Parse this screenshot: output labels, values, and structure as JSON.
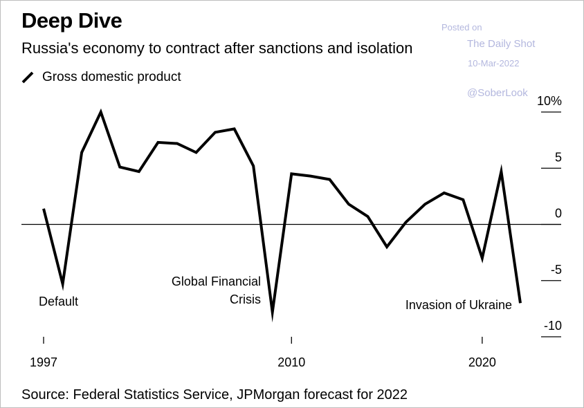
{
  "header": {
    "title": "Deep Dive",
    "subtitle": "Russia's economy to contract after sanctions and isolation"
  },
  "watermark": {
    "line1": "Posted on",
    "line2": "The Daily Shot",
    "line3": "10-Mar-2022",
    "line4": "@SoberLook"
  },
  "source": "Source: Federal Statistics Service, JPMorgan forecast for 2022",
  "colors": {
    "line": "#000000",
    "axis": "#000000",
    "watermark": "#b3b7de"
  },
  "chart_data": {
    "type": "line",
    "title": "Deep Dive",
    "subtitle": "Russia's economy to contract after sanctions and isolation",
    "legend": {
      "placement": "top-left",
      "entries": [
        "Gross domestic product"
      ]
    },
    "series": [
      {
        "name": "Gross domestic product",
        "x": [
          1997,
          1998,
          1999,
          2000,
          2001,
          2002,
          2003,
          2004,
          2005,
          2006,
          2007,
          2008,
          2009,
          2010,
          2011,
          2012,
          2013,
          2014,
          2015,
          2016,
          2017,
          2018,
          2019,
          2020,
          2021,
          2022
        ],
        "values": [
          1.4,
          -5.3,
          6.4,
          10.0,
          5.1,
          4.7,
          7.3,
          7.2,
          6.4,
          8.2,
          8.5,
          5.2,
          -7.8,
          4.5,
          4.3,
          4.0,
          1.8,
          0.7,
          -2.0,
          0.2,
          1.8,
          2.8,
          2.2,
          -3.0,
          4.7,
          -7.0
        ]
      }
    ],
    "x_axis": {
      "ticks": [
        1997,
        2010,
        2020
      ],
      "tick_labels": [
        "1997",
        "2010",
        "2020"
      ],
      "range": [
        1997,
        2022
      ]
    },
    "y_axis": {
      "position": "right",
      "ticks": [
        10,
        5,
        0,
        -5,
        -10
      ],
      "tick_labels": [
        "10%",
        "5",
        "0",
        "-5",
        "-10"
      ],
      "range": [
        -10,
        10
      ]
    },
    "zero_line": true,
    "grid": false,
    "annotations": [
      {
        "text": "Default",
        "x": 1998
      },
      {
        "text": "Global Financial",
        "x": 2009,
        "line": 1
      },
      {
        "text": "Crisis",
        "x": 2009,
        "line": 2
      },
      {
        "text": "Invasion of Ukraine",
        "x": 2022
      }
    ]
  }
}
